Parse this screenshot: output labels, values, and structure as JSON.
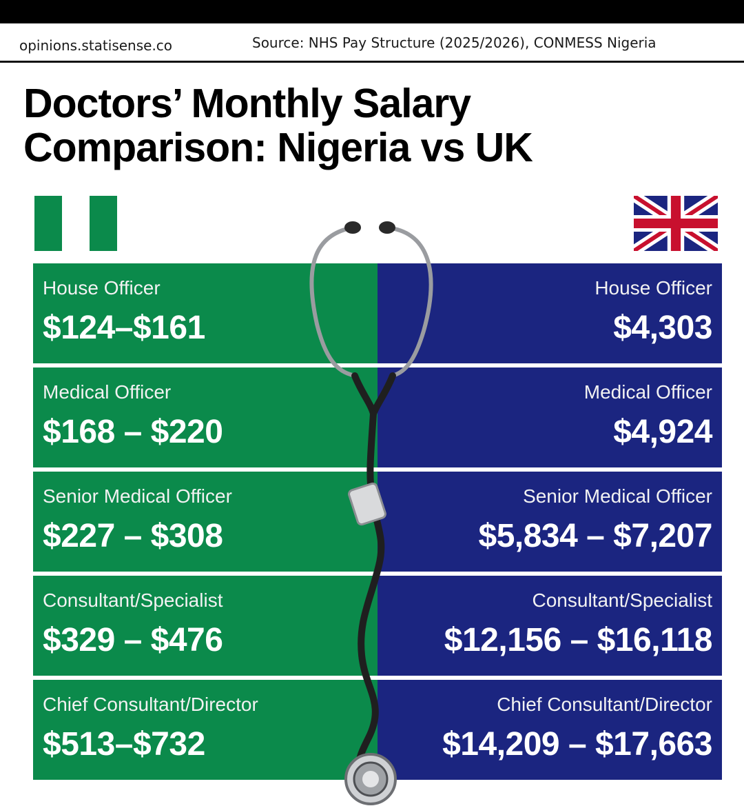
{
  "header": {
    "site": "opinions.statisense.co",
    "source": "Source: NHS Pay Structure (2025/2026), CONMESS Nigeria"
  },
  "title": {
    "line1": "Doctors’ Monthly Salary",
    "line2": "Comparison: Nigeria vs UK"
  },
  "colors": {
    "nigeria_green": "#0b8a4b",
    "uk_blue": "#1b2580",
    "uk_red": "#c8102e"
  },
  "icons": {
    "nigeria": "nigeria-flag-icon",
    "uk": "uk-flag-icon",
    "divider": "stethoscope-icon"
  },
  "nigeria": [
    {
      "role": "House Officer",
      "amount": "$124–$161"
    },
    {
      "role": "Medical Officer",
      "amount": "$168 – $220"
    },
    {
      "role": "Senior Medical Officer",
      "amount": "$227 – $308"
    },
    {
      "role": "Consultant/Specialist",
      "amount": "$329 – $476"
    },
    {
      "role": "Chief Consultant/Director",
      "amount": "$513–$732"
    }
  ],
  "uk": [
    {
      "role": "House Officer",
      "amount": "$4,303"
    },
    {
      "role": "Medical Officer",
      "amount": "$4,924"
    },
    {
      "role": "Senior Medical Officer",
      "amount": "$5,834 – $7,207"
    },
    {
      "role": "Consultant/Specialist",
      "amount": "$12,156 – $16,118"
    },
    {
      "role": "Chief Consultant/Director",
      "amount": "$14,209 – $17,663"
    }
  ]
}
